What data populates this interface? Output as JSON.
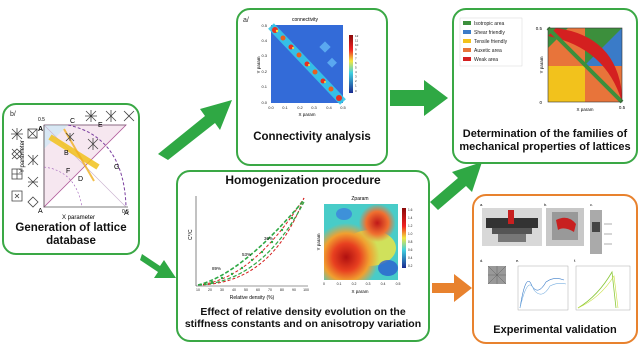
{
  "panel_a": {
    "tag": "a/",
    "title": "connectivity",
    "xlabel": "X param",
    "ylabel": "Y param",
    "caption": "Connectivity analysis",
    "xticks": [
      "0.0",
      "0.1",
      "0.2",
      "0.3",
      "0.4",
      "0.5"
    ],
    "yticks": [
      "0.5",
      "0.4",
      "0.3",
      "0.2",
      "0.1",
      "0.0"
    ],
    "colorbar_ticks": [
      "12",
      "11",
      "10",
      "9",
      "8",
      "7",
      "6",
      "5",
      "4",
      "3",
      "2",
      "1",
      "0"
    ]
  },
  "panel_b": {
    "tag": "b/",
    "ylabel": "Y parameter",
    "xlabel": "X parameter",
    "caption": "Generation of lattice database",
    "labels": [
      "A",
      "B",
      "C",
      "D",
      "E",
      "F",
      "G",
      "A",
      "A"
    ],
    "ticks": [
      "0.5",
      "0.5"
    ]
  },
  "families": {
    "caption": "Determination of the families of mechanical properties of lattices",
    "legend": [
      {
        "label": "Isotropic area",
        "color": "#3c8f3c"
      },
      {
        "label": "Shear friendly",
        "color": "#3a7bc8"
      },
      {
        "label": "Tensile friendly",
        "color": "#f2c21c"
      },
      {
        "label": "Auxetic area",
        "color": "#e8743a"
      },
      {
        "label": "Weak area",
        "color": "#d42020"
      }
    ],
    "xlabel": "X param",
    "ylabel": "Y param",
    "ticks": [
      "0.5",
      "0",
      "0.5"
    ]
  },
  "homogenization": {
    "title": "Homogenization procedure",
    "caption": "Effect of relative density evolution on the stiffness constants and on anisotropy variation",
    "plot1": {
      "xlabel": "Relative density (%)",
      "ylabel": "C*/C",
      "xticks": [
        "10",
        "20",
        "30",
        "40",
        "50",
        "60",
        "70",
        "80",
        "90",
        "100"
      ],
      "annotations": [
        "89%",
        "53%",
        "36%"
      ]
    },
    "plot2": {
      "title": "Zparam",
      "xlabel": "X param",
      "ylabel": "Y param",
      "xticks": [
        "0",
        "0.1",
        "0.2",
        "0.3",
        "0.4",
        "0.5"
      ],
      "colorbar_ticks": [
        "1.6",
        "1.4",
        "1.2",
        "1.0",
        "0.8",
        "0.6",
        "0.4",
        "0.2"
      ]
    }
  },
  "experimental": {
    "caption": "Experimental validation",
    "tags": [
      "a.",
      "b.",
      "c.",
      "d.",
      "e.",
      "f."
    ]
  },
  "colors": {
    "green": "#3aa845",
    "orange": "#e8822e"
  }
}
